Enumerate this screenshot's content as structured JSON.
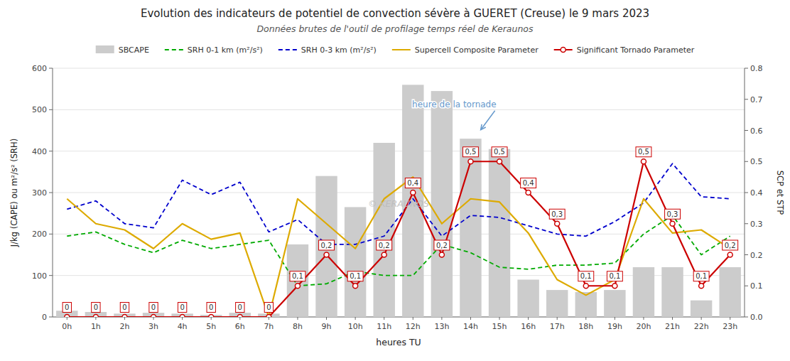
{
  "chart_data": {
    "type": "bar",
    "title": "Evolution des indicateurs de potentiel de convection sévère à GUERET (Creuse) le 9 mars 2023",
    "subtitle": "Données brutes de l'outil de profilage temps réel de Keraunos",
    "x_label": "heures TU",
    "y_label": "J/kg (CAPE) ou m²/s² (SRH)",
    "y2_label": "SCP et STP",
    "categories": [
      "0h",
      "1h",
      "2h",
      "3h",
      "4h",
      "5h",
      "6h",
      "7h",
      "8h",
      "9h",
      "10h",
      "11h",
      "12h",
      "13h",
      "14h",
      "15h",
      "16h",
      "17h",
      "18h",
      "19h",
      "20h",
      "21h",
      "22h",
      "23h"
    ],
    "series": [
      {
        "name": "SBCAPE",
        "type": "bar",
        "color": "#cccccc",
        "values": [
          15,
          12,
          8,
          10,
          8,
          5,
          10,
          8,
          175,
          340,
          265,
          420,
          560,
          545,
          430,
          405,
          90,
          65,
          60,
          65,
          120,
          120,
          40,
          120
        ]
      },
      {
        "name": "SRH 0-1 km (m²/s²)",
        "type": "line",
        "color": "#00aa00",
        "line_style": "dashed",
        "values": [
          195,
          205,
          175,
          155,
          185,
          165,
          175,
          185,
          75,
          80,
          110,
          100,
          100,
          175,
          155,
          120,
          115,
          125,
          125,
          130,
          200,
          245,
          150,
          195
        ]
      },
      {
        "name": "SRH 0-3 km (m²/s²)",
        "type": "line",
        "color": "#0000cc",
        "line_style": "dashed",
        "values": [
          260,
          280,
          225,
          215,
          330,
          295,
          325,
          205,
          235,
          175,
          175,
          195,
          285,
          195,
          245,
          240,
          220,
          200,
          195,
          230,
          275,
          370,
          290,
          285
        ]
      },
      {
        "name": "Supercell Composite Parameter",
        "type": "line",
        "color": "#ddaa00",
        "line_style": "solid",
        "axis": "y2",
        "values": [
          0.38,
          0.3,
          0.28,
          0.22,
          0.3,
          0.25,
          0.27,
          0.0,
          0.38,
          0.3,
          0.22,
          0.38,
          0.45,
          0.3,
          0.38,
          0.37,
          0.27,
          0.12,
          0.07,
          0.12,
          0.38,
          0.27,
          0.28,
          0.22
        ]
      },
      {
        "name": "Significant Tornado Parameter",
        "type": "line",
        "color": "#cc0000",
        "line_style": "solid",
        "marker": "circle",
        "axis": "y2",
        "data_labels": true,
        "values": [
          0.0,
          0.0,
          0.0,
          0.0,
          0.0,
          0.0,
          0.0,
          0.0,
          0.1,
          0.2,
          0.1,
          0.2,
          0.4,
          0.2,
          0.5,
          0.5,
          0.4,
          0.3,
          0.1,
          0.1,
          0.5,
          0.3,
          0.1,
          0.2
        ],
        "value_labels": [
          "0",
          "0",
          "0",
          "0",
          "0",
          "0",
          "0",
          "0",
          "0,1",
          "0,2",
          "0,1",
          "0,2",
          "0,4",
          "0,2",
          "0,5",
          "0,5",
          "0,4",
          "0,3",
          "0,1",
          "0,1",
          "0,5",
          "0,3",
          "0,1",
          "0,2"
        ]
      }
    ],
    "ylim": [
      0,
      600
    ],
    "yticks": [
      0,
      100,
      200,
      300,
      400,
      500,
      600
    ],
    "y2lim": [
      0,
      0.8
    ],
    "y2ticks": [
      {
        "value": 0,
        "label": "0.0"
      },
      0.1,
      0.2,
      0.3,
      0.4,
      0.5,
      0.6,
      0.7,
      0.8
    ],
    "grid": true,
    "legend": "top",
    "annotations": [
      {
        "text": "heure de la tornade",
        "x": 14.3,
        "y": 0.595,
        "axis": "y2",
        "color": "#6699cc"
      },
      {
        "text": "© KERAUNOS"
      }
    ]
  }
}
